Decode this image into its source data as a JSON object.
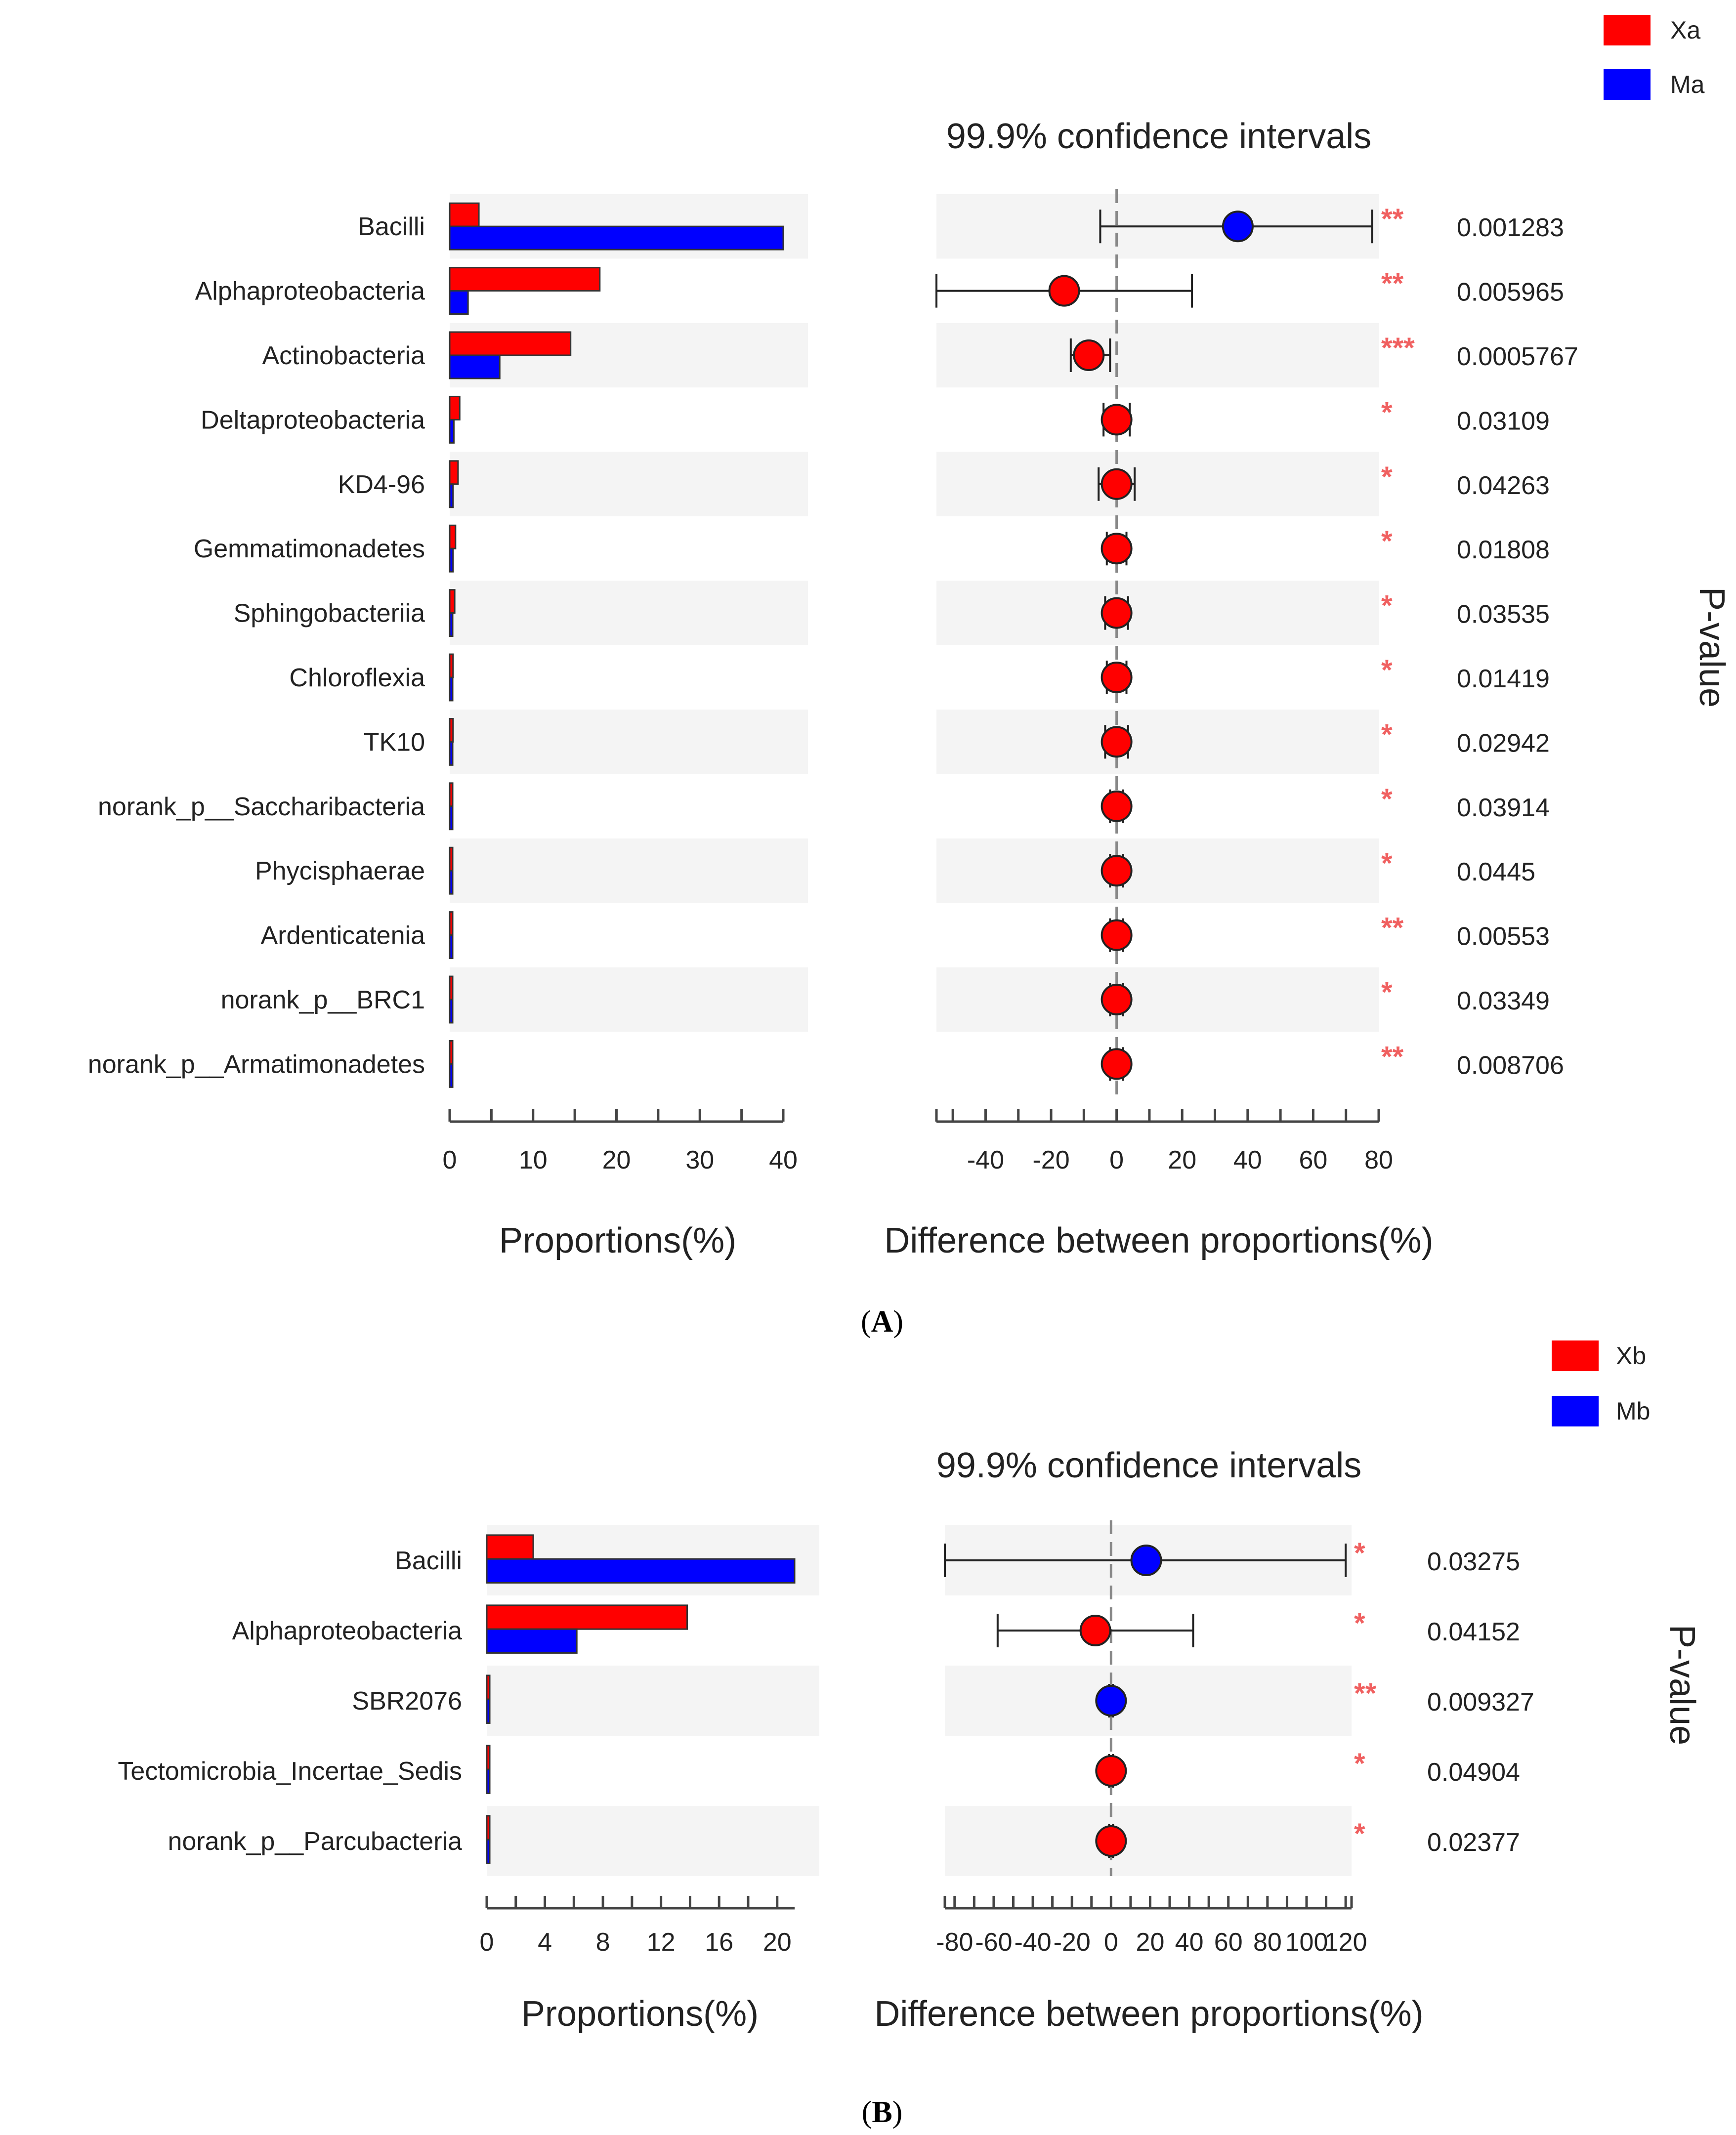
{
  "chart_data": [
    {
      "type": "bar",
      "panel_label": "A",
      "title": "99.9% confidence intervals",
      "xlabel_left": "Proportions(%)",
      "xlabel_right": "Difference between proportions(%)",
      "pvalue_label": "P-value",
      "legend": [
        {
          "name": "Xa",
          "color": "#ff0000"
        },
        {
          "name": "Ma",
          "color": "#0000ff"
        }
      ],
      "categories": [
        "Bacilli",
        "Alphaproteobacteria",
        "Actinobacteria",
        "Deltaproteobacteria",
        "KD4-96",
        "Gemmatimonadetes",
        "Sphingobacteriia",
        "Chloroflexia",
        "TK10",
        "norank_p__Saccharibacteria",
        "Phycisphaerae",
        "Ardenticatenia",
        "norank_p__BRC1",
        "norank_p__Armatimonadetes"
      ],
      "series": [
        {
          "name": "Xa",
          "values": [
            3.5,
            18,
            14.5,
            1.2,
            1.0,
            0.7,
            0.6,
            0.4,
            0.4,
            0.2,
            0.2,
            0.2,
            0.2,
            0.2
          ]
        },
        {
          "name": "Ma",
          "values": [
            40,
            2.2,
            6,
            0.5,
            0.4,
            0.4,
            0.3,
            0.2,
            0.2,
            0.1,
            0.1,
            0.1,
            0.1,
            0.1
          ]
        }
      ],
      "left_xlim": [
        0,
        40
      ],
      "left_ticks": [
        0,
        10,
        20,
        30,
        40
      ],
      "diff": [
        {
          "est": 37,
          "lo": -5,
          "hi": 78,
          "color": "#0000ff"
        },
        {
          "est": -16,
          "lo": -55,
          "hi": 23,
          "color": "#ff0000"
        },
        {
          "est": -8.5,
          "lo": -14,
          "hi": -2,
          "color": "#ff0000"
        },
        {
          "est": 0,
          "lo": -4,
          "hi": 4,
          "color": "#ff0000"
        },
        {
          "est": 0,
          "lo": -5.5,
          "hi": 5.5,
          "color": "#ff0000"
        },
        {
          "est": 0,
          "lo": -3,
          "hi": 3,
          "color": "#ff0000"
        },
        {
          "est": 0,
          "lo": -3.5,
          "hi": 3.5,
          "color": "#ff0000"
        },
        {
          "est": 0,
          "lo": -3,
          "hi": 3,
          "color": "#ff0000"
        },
        {
          "est": 0,
          "lo": -3.5,
          "hi": 3.5,
          "color": "#ff0000"
        },
        {
          "est": 0,
          "lo": -2,
          "hi": 2,
          "color": "#ff0000"
        },
        {
          "est": 0,
          "lo": -2,
          "hi": 2,
          "color": "#ff0000"
        },
        {
          "est": 0,
          "lo": -2,
          "hi": 2,
          "color": "#ff0000"
        },
        {
          "est": 0,
          "lo": -2,
          "hi": 2,
          "color": "#ff0000"
        },
        {
          "est": 0,
          "lo": -2,
          "hi": 2,
          "color": "#ff0000"
        }
      ],
      "right_xlim": [
        -55,
        80
      ],
      "right_ticks": [
        -40,
        -20,
        0,
        20,
        40,
        60,
        80
      ],
      "significance": [
        "**",
        "**",
        "***",
        "*",
        "*",
        "*",
        "*",
        "*",
        "*",
        "*",
        "*",
        "**",
        "*",
        "**"
      ],
      "pvalues": [
        "0.001283",
        "0.005965",
        "0.0005767",
        "0.03109",
        "0.04263",
        "0.01808",
        "0.03535",
        "0.01419",
        "0.02942",
        "0.03914",
        "0.0445",
        "0.00553",
        "0.03349",
        "0.008706"
      ]
    },
    {
      "type": "bar",
      "panel_label": "B",
      "title": "99.9% confidence intervals",
      "xlabel_left": "Proportions(%)",
      "xlabel_right": "Difference between proportions(%)",
      "pvalue_label": "P-value",
      "legend": [
        {
          "name": "Xb",
          "color": "#ff0000"
        },
        {
          "name": "Mb",
          "color": "#0000ff"
        }
      ],
      "categories": [
        "Bacilli",
        "Alphaproteobacteria",
        "SBR2076",
        "Tectomicrobia_Incertae_Sedis",
        "norank_p__Parcubacteria"
      ],
      "series": [
        {
          "name": "Xb",
          "values": [
            3.2,
            13.8,
            0.2,
            0.2,
            0.2
          ]
        },
        {
          "name": "Mb",
          "values": [
            21.2,
            6.2,
            0.1,
            0.1,
            0.1
          ]
        }
      ],
      "left_xlim": [
        0,
        21.2
      ],
      "left_ticks": [
        0,
        4,
        8,
        12,
        16,
        20
      ],
      "diff": [
        {
          "est": 18,
          "lo": -85,
          "hi": 120,
          "color": "#0000ff"
        },
        {
          "est": -8,
          "lo": -58,
          "hi": 42,
          "color": "#ff0000"
        },
        {
          "est": 0,
          "lo": -1,
          "hi": 1,
          "color": "#0000ff"
        },
        {
          "est": 0,
          "lo": -1,
          "hi": 1,
          "color": "#ff0000"
        },
        {
          "est": 0,
          "lo": -1,
          "hi": 1,
          "color": "#ff0000"
        }
      ],
      "right_xlim": [
        -85,
        123
      ],
      "right_ticks": [
        -80,
        -60,
        -40,
        -20,
        0,
        20,
        40,
        60,
        80,
        100,
        120
      ],
      "significance": [
        "*",
        "*",
        "**",
        "*",
        "*"
      ],
      "pvalues": [
        "0.03275",
        "0.04152",
        "0.009327",
        "0.04904",
        "0.02377"
      ]
    }
  ]
}
